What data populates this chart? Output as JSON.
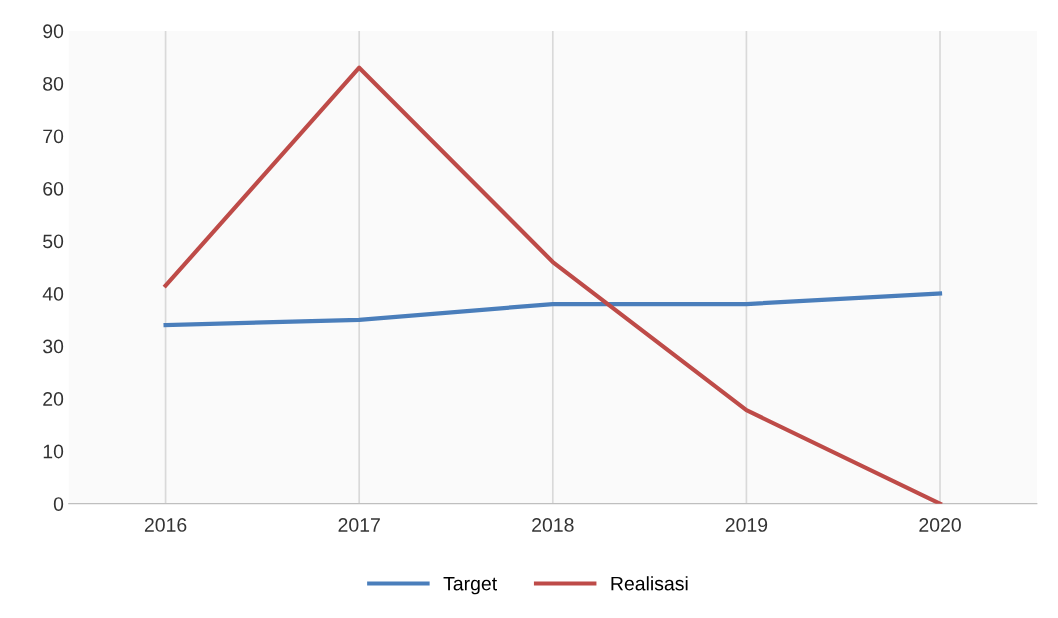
{
  "chart_data": {
    "type": "line",
    "categories": [
      "2016",
      "2017",
      "2018",
      "2019",
      "2020"
    ],
    "series": [
      {
        "name": "Target",
        "color": "#4a7ebb",
        "values": [
          34,
          35,
          38,
          38,
          40
        ]
      },
      {
        "name": "Realisasi",
        "color": "#be4b48",
        "values": [
          41.5,
          83,
          46,
          17.8,
          0
        ]
      }
    ],
    "ylim": [
      0,
      90
    ],
    "yticks": [
      0,
      10,
      20,
      30,
      40,
      50,
      60,
      70,
      80,
      90
    ],
    "grid": "x",
    "legend": "bottom",
    "marker": "none",
    "line_style": "solid"
  }
}
